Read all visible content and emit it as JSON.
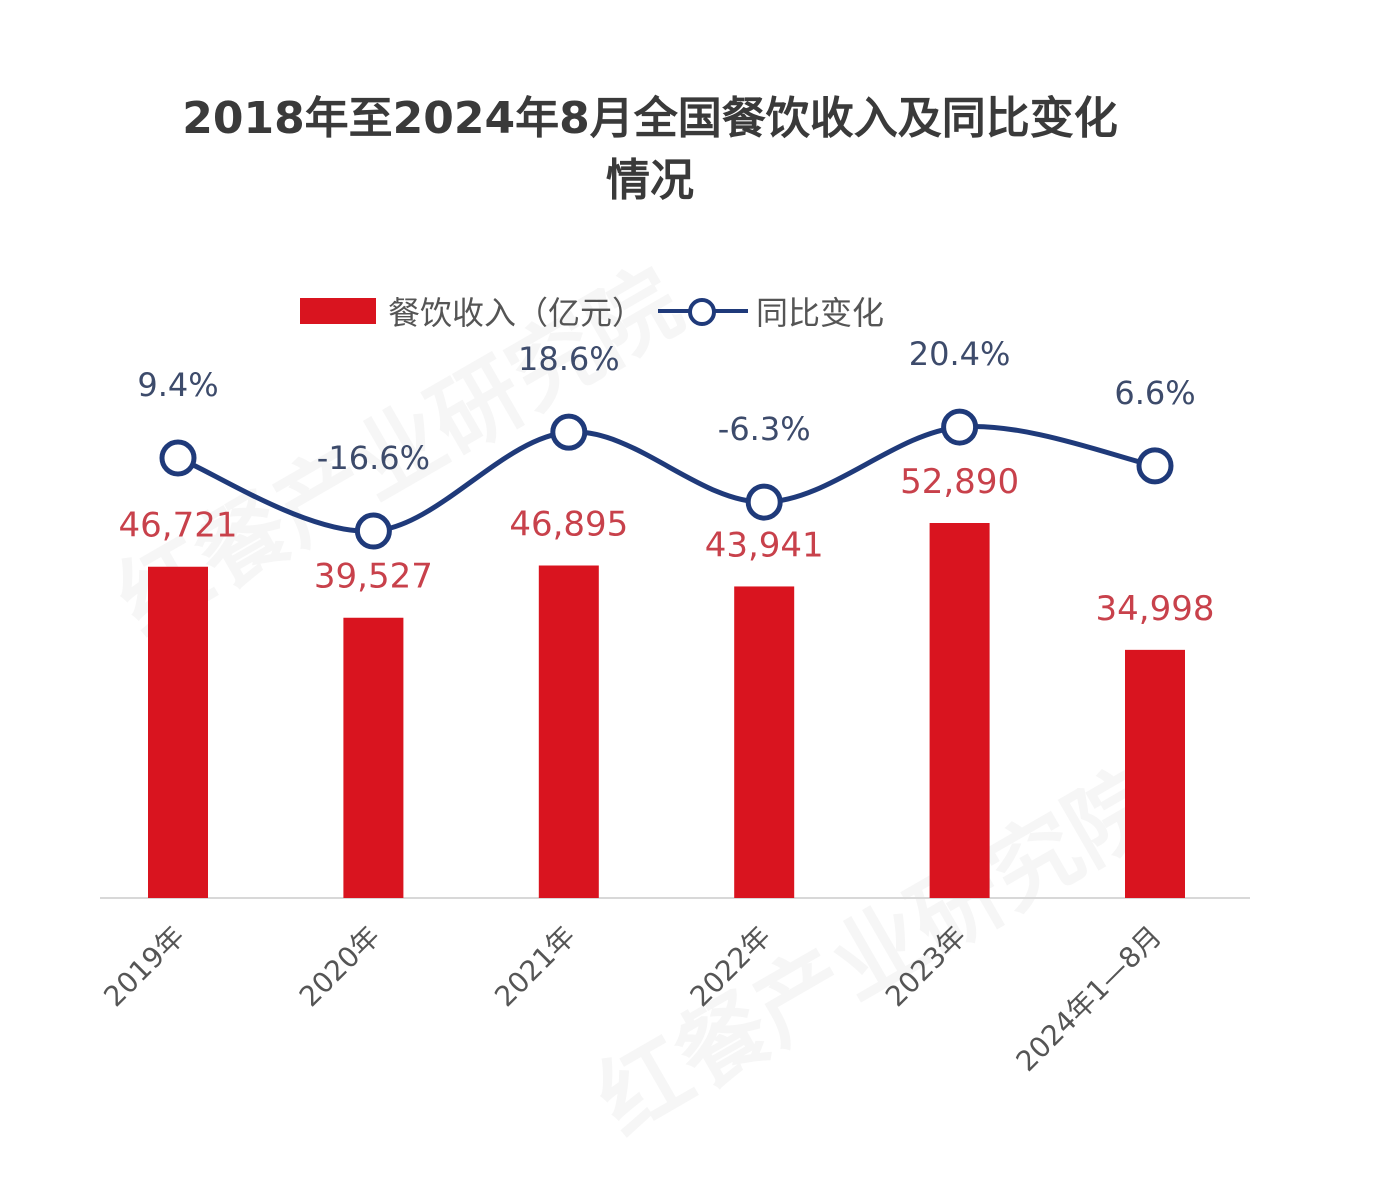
{
  "chart_data": {
    "type": "bar+line",
    "title": "2018年至2024年8月全国餐饮收入及同比变化",
    "title_line2": "情况",
    "categories": [
      "2019年",
      "2020年",
      "2021年",
      "2022年",
      "2023年",
      "2024年1—8月"
    ],
    "series": [
      {
        "name": "餐饮收入（亿元）",
        "type": "bar",
        "values": [
          46721,
          39527,
          46895,
          43941,
          52890,
          34998
        ],
        "labels": [
          "46,721",
          "39,527",
          "46,895",
          "43,941",
          "52,890",
          "34,998"
        ]
      },
      {
        "name": "同比变化",
        "type": "line",
        "values": [
          9.4,
          -16.6,
          18.6,
          -6.3,
          20.4,
          6.6
        ],
        "labels": [
          "9.4%",
          "-16.6%",
          "18.6%",
          "-6.3%",
          "20.4%",
          "6.6%"
        ]
      }
    ],
    "legend_position": "top-center",
    "grid": false,
    "colors": {
      "bar": "#d9141f",
      "line": "#1f3a7a",
      "bar_label": "#c8414b",
      "line_label": "#3d4b6b"
    }
  },
  "watermark": "红餐产业研究院"
}
